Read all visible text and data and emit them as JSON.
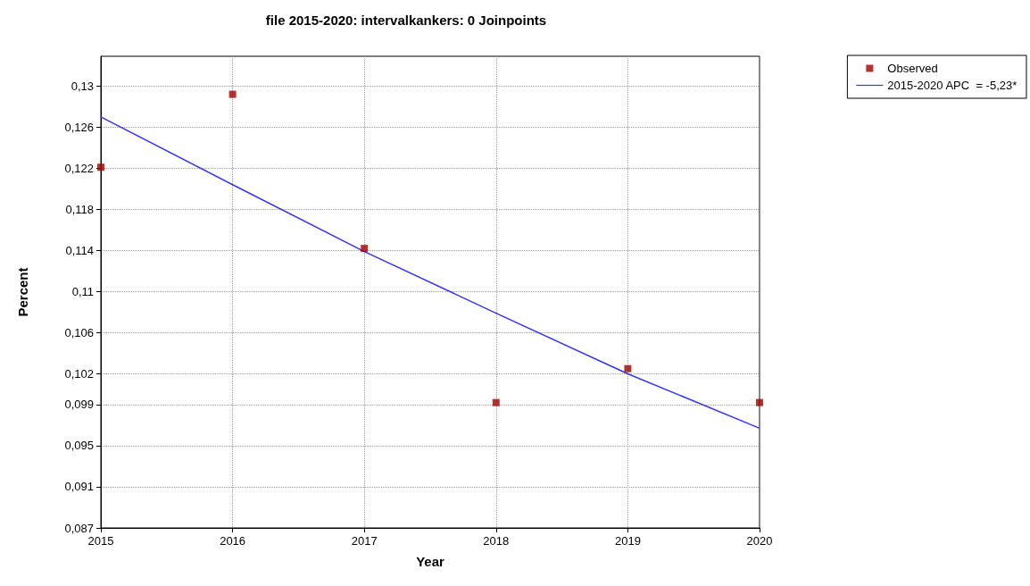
{
  "chart_data": {
    "type": "scatter",
    "title": "file 2015-2020: intervalkankers: 0 Joinpoints",
    "xlabel": "Year",
    "ylabel": "Percent",
    "xlim": [
      2015,
      2020
    ],
    "xticks": [
      2015,
      2016,
      2017,
      2018,
      2019,
      2020
    ],
    "ylim": [
      0.087,
      0.1329
    ],
    "yticks": [
      {
        "value": 0.087,
        "label": "0,087"
      },
      {
        "value": 0.091,
        "label": "0,091"
      },
      {
        "value": 0.095,
        "label": "0,095"
      },
      {
        "value": 0.099,
        "label": "0,099"
      },
      {
        "value": 0.102,
        "label": "0,102"
      },
      {
        "value": 0.106,
        "label": "0,106"
      },
      {
        "value": 0.11,
        "label": "0,11"
      },
      {
        "value": 0.114,
        "label": "0,114"
      },
      {
        "value": 0.118,
        "label": "0,118"
      },
      {
        "value": 0.122,
        "label": "0,122"
      },
      {
        "value": 0.126,
        "label": "0,126"
      },
      {
        "value": 0.13,
        "label": "0,13"
      }
    ],
    "grid": true,
    "legend": "top right",
    "series": [
      {
        "name": "Observed",
        "type": "scatter",
        "marker": "square",
        "color": "#a00000",
        "x": [
          2015,
          2016,
          2017,
          2018,
          2019,
          2020
        ],
        "values": [
          0.1221,
          0.1292,
          0.1142,
          0.0992,
          0.1025,
          0.0992
        ]
      },
      {
        "name": "2015-2020 APC  = -5,23*",
        "type": "line",
        "marker": "none",
        "line_style": "solid",
        "color": "#3333ff",
        "x": [
          2015,
          2016,
          2017,
          2018,
          2019,
          2020
        ],
        "values": [
          0.127,
          0.1204,
          0.1139,
          0.1079,
          0.102,
          0.0967
        ]
      }
    ]
  }
}
